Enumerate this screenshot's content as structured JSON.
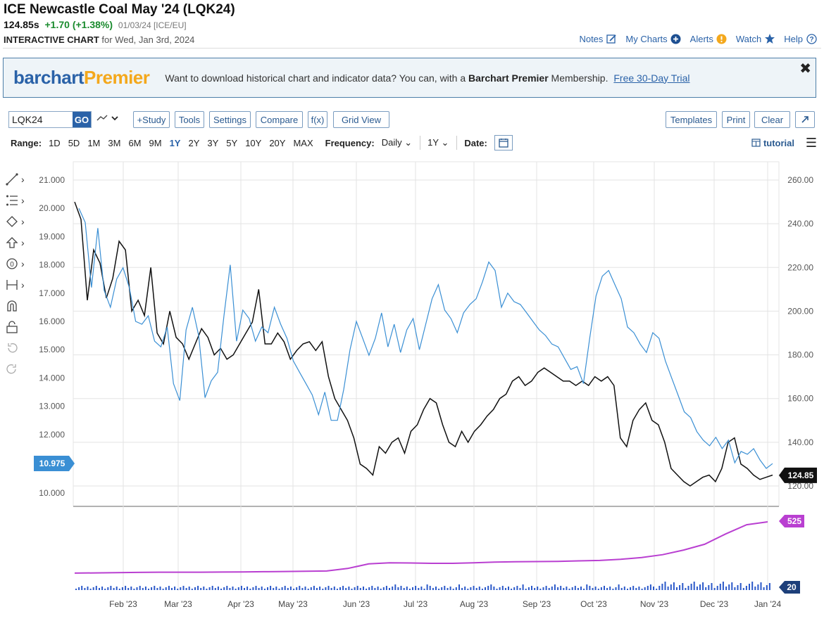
{
  "header": {
    "title": "ICE Newcastle Coal May '24 (LQK24)",
    "last": "124.85s",
    "change": "+1.70 (+1.38%)",
    "meta": "01/03/24 [ICE/EU]",
    "sub_bold": "INTERACTIVE CHART",
    "sub_rest": "for Wed, Jan 3rd, 2024"
  },
  "links": {
    "notes": "Notes",
    "my_charts": "My Charts",
    "alerts": "Alerts",
    "watch": "Watch",
    "help": "Help"
  },
  "banner": {
    "logo_part1": "barchart",
    "logo_part2": "Premier",
    "msg_pre": "Want to download historical chart and indicator data? You can, with a",
    "msg_bold": "Barchart Premier",
    "msg_post": "Membership.",
    "trial": "Free 30-Day Trial",
    "close": "✖"
  },
  "toolbar": {
    "symbol_value": "LQK24",
    "go": "GO",
    "study": "+Study",
    "tools": "Tools",
    "settings": "Settings",
    "compare": "Compare",
    "fx": "f(x)",
    "grid_view": "Grid View",
    "templates": "Templates",
    "print": "Print",
    "clear": "Clear"
  },
  "rangebar": {
    "label": "Range:",
    "ranges": [
      "1D",
      "5D",
      "1M",
      "3M",
      "6M",
      "9M",
      "1Y",
      "2Y",
      "3Y",
      "5Y",
      "10Y",
      "20Y",
      "MAX"
    ],
    "active": "1Y",
    "freq_label": "Frequency:",
    "freq_value": "Daily",
    "period_value": "1Y",
    "date_label": "Date:",
    "tutorial": "tutorial"
  },
  "colors": {
    "accent": "#2a62a8",
    "price_line": "#111111",
    "compare_line": "#3a8fd4",
    "open_interest": "#b93fd1",
    "volume": "#2a58c9",
    "up_change": "#1a8b2e"
  },
  "chart_data": {
    "type": "line",
    "x_labels": [
      "Feb '23",
      "Mar '23",
      "Apr '23",
      "May '23",
      "Jun '23",
      "Jul '23",
      "Aug '23",
      "Sep '23",
      "Oct '23",
      "Nov '23",
      "Dec '23",
      "Jan '24"
    ],
    "left_axis": {
      "ticks": [
        "21.000",
        "20.000",
        "19.000",
        "18.000",
        "17.000",
        "16.000",
        "15.000",
        "14.000",
        "13.000",
        "12.000",
        "10.000"
      ],
      "badge": "10.975"
    },
    "right_axis": {
      "ticks": [
        "260.00",
        "240.00",
        "220.00",
        "200.00",
        "180.00",
        "160.00",
        "140.00",
        "120.00"
      ],
      "badge": "124.85"
    },
    "series": [
      {
        "name": "LQK24",
        "axis": "right",
        "values": [
          250,
          242,
          205,
          228,
          222,
          206,
          215,
          232,
          228,
          200,
          205,
          198,
          220,
          190,
          185,
          200,
          188,
          185,
          178,
          185,
          192,
          188,
          180,
          183,
          178,
          180,
          185,
          190,
          195,
          210,
          185,
          185,
          190,
          186,
          178,
          182,
          185,
          186,
          182,
          186,
          170,
          160,
          155,
          150,
          142,
          130,
          128,
          125,
          138,
          135,
          140,
          142,
          135,
          145,
          148,
          155,
          160,
          158,
          148,
          140,
          138,
          145,
          140,
          145,
          148,
          152,
          155,
          160,
          162,
          168,
          170,
          166,
          168,
          172,
          174,
          172,
          170,
          168,
          168,
          166,
          168,
          166,
          170,
          168,
          170,
          166,
          142,
          138,
          150,
          155,
          158,
          150,
          148,
          140,
          128,
          125,
          122,
          120,
          122,
          124,
          125,
          122,
          128,
          140,
          142,
          130,
          128,
          125,
          123,
          124,
          125
        ]
      },
      {
        "name": "Compare",
        "axis": "left",
        "values": [
          20.0,
          19.5,
          17.2,
          19.3,
          17.1,
          16.5,
          17.5,
          17.9,
          17.2,
          16.0,
          15.9,
          16.2,
          15.3,
          15.1,
          15.8,
          13.8,
          13.2,
          15.7,
          16.5,
          15.5,
          13.3,
          13.9,
          14.2,
          16.2,
          18.0,
          15.3,
          16.4,
          16.1,
          15.3,
          15.8,
          15.6,
          16.5,
          15.9,
          15.4,
          14.6,
          14.2,
          13.8,
          13.4,
          12.7,
          13.5,
          12.5,
          12.5,
          13.6,
          15.0,
          16.0,
          15.4,
          14.8,
          15.4,
          16.3,
          15.1,
          15.9,
          14.9,
          15.7,
          16.1,
          15.0,
          15.9,
          16.8,
          17.3,
          16.4,
          16.1,
          15.6,
          16.3,
          16.6,
          16.8,
          17.4,
          18.1,
          17.8,
          16.5,
          17.0,
          16.7,
          16.6,
          16.3,
          16.0,
          15.7,
          15.5,
          15.2,
          15.1,
          14.7,
          14.3,
          14.4,
          13.8,
          15.4,
          16.9,
          17.6,
          17.8,
          17.3,
          16.8,
          15.8,
          15.6,
          15.2,
          14.9,
          15.6,
          15.4,
          14.6,
          14.0,
          13.4,
          12.8,
          12.6,
          12.1,
          11.8,
          11.6,
          11.9,
          11.5,
          11.8,
          11.0,
          11.4,
          11.3,
          11.5,
          11.1,
          10.8,
          10.97
        ]
      }
    ],
    "open_interest": {
      "name": "Open Interest",
      "badge": "525",
      "values": [
        80,
        82,
        84,
        86,
        88,
        88,
        88,
        89,
        90,
        92,
        94,
        96,
        98,
        120,
        160,
        170,
        168,
        165,
        165,
        170,
        175,
        178,
        180,
        182,
        186,
        190,
        200,
        215,
        240,
        280,
        330,
        420,
        500,
        525
      ]
    },
    "volume": {
      "name": "Volume",
      "badge": "20"
    }
  }
}
